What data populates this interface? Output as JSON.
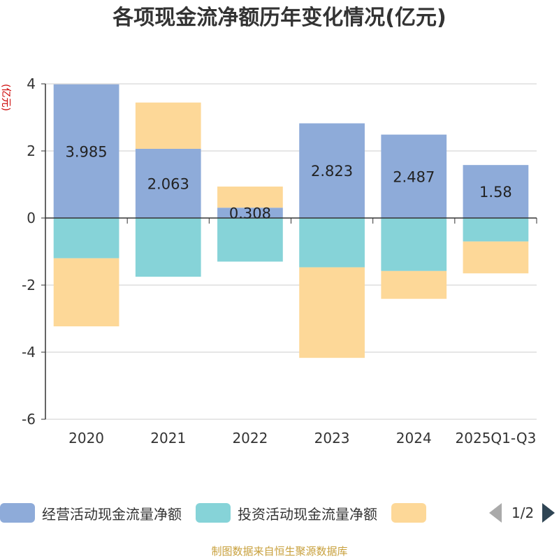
{
  "chart_data": {
    "type": "bar",
    "stacked": true,
    "title": "各项现金流净额历年变化情况(亿元)",
    "ylabel": "(亿元)",
    "ylim": [
      -6,
      4
    ],
    "yticks": [
      4,
      2,
      0,
      -2,
      -4,
      -6
    ],
    "categories": [
      "2020",
      "2021",
      "2022",
      "2023",
      "2024",
      "2025Q1-Q3"
    ],
    "series": [
      {
        "name": "经营活动现金流量净额",
        "color": "#8eabd9",
        "values": [
          3.985,
          2.063,
          0.308,
          2.823,
          2.487,
          1.58
        ],
        "show_labels": true
      },
      {
        "name": "投资活动现金流量净额",
        "color": "#86d3d8",
        "values": [
          -1.2,
          -1.75,
          -1.3,
          -1.47,
          -1.58,
          -0.7
        ],
        "show_labels": false
      },
      {
        "name": "",
        "color": "#fdd898",
        "values": [
          -2.03,
          1.38,
          0.63,
          -2.7,
          -0.83,
          -0.95
        ],
        "show_labels": false
      }
    ],
    "legend_position": "bottom"
  },
  "legend": {
    "items": [
      {
        "label": "经营活动现金流量净额",
        "color": "#8eabd9"
      },
      {
        "label": "投资活动现金流量净额",
        "color": "#86d3d8"
      },
      {
        "label": "",
        "color": "#fdd898"
      }
    ],
    "page_indicator": "1/2"
  },
  "source_note": "制图数据来自恒生聚源数据库"
}
